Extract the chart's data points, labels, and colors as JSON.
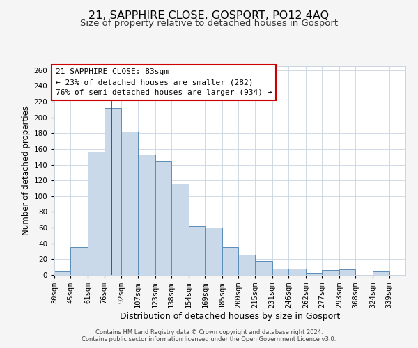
{
  "title1": "21, SAPPHIRE CLOSE, GOSPORT, PO12 4AQ",
  "title2": "Size of property relative to detached houses in Gosport",
  "xlabel": "Distribution of detached houses by size in Gosport",
  "ylabel": "Number of detached properties",
  "bin_labels": [
    "30sqm",
    "45sqm",
    "61sqm",
    "76sqm",
    "92sqm",
    "107sqm",
    "123sqm",
    "138sqm",
    "154sqm",
    "169sqm",
    "185sqm",
    "200sqm",
    "215sqm",
    "231sqm",
    "246sqm",
    "262sqm",
    "277sqm",
    "293sqm",
    "308sqm",
    "324sqm",
    "339sqm"
  ],
  "bin_edges": [
    30,
    45,
    61,
    76,
    92,
    107,
    123,
    138,
    154,
    169,
    185,
    200,
    215,
    231,
    246,
    262,
    277,
    293,
    308,
    324,
    339,
    354
  ],
  "counts": [
    4,
    35,
    156,
    212,
    182,
    153,
    144,
    116,
    62,
    60,
    35,
    26,
    18,
    8,
    8,
    3,
    6,
    7,
    0,
    4,
    0
  ],
  "bar_facecolor": "#c9d9ea",
  "bar_edgecolor": "#5b8db8",
  "property_value": 83,
  "vline_color": "#cc0000",
  "box_text_line1": "21 SAPPHIRE CLOSE: 83sqm",
  "box_text_line2": "← 23% of detached houses are smaller (282)",
  "box_text_line3": "76% of semi-detached houses are larger (934) →",
  "box_edgecolor": "#cc0000",
  "box_facecolor": "#ffffff",
  "ylim": [
    0,
    265
  ],
  "yticks": [
    0,
    20,
    40,
    60,
    80,
    100,
    120,
    140,
    160,
    180,
    200,
    220,
    240,
    260
  ],
  "footer1": "Contains HM Land Registry data © Crown copyright and database right 2024.",
  "footer2": "Contains public sector information licensed under the Open Government Licence v3.0.",
  "background_color": "#f5f5f5",
  "plot_bg_color": "#ffffff",
  "grid_color": "#c8d4e0",
  "title1_fontsize": 11.5,
  "title2_fontsize": 9.5,
  "xlabel_fontsize": 9,
  "ylabel_fontsize": 8.5,
  "tick_fontsize": 7.5,
  "footer_fontsize": 6,
  "annotation_fontsize": 8
}
